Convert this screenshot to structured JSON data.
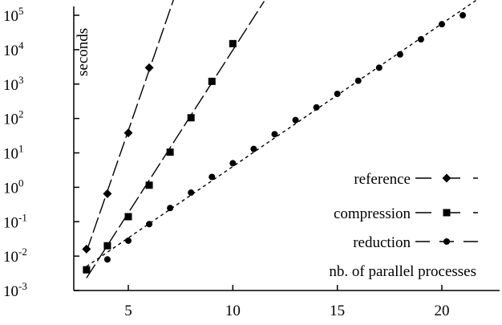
{
  "chart_data": {
    "type": "line",
    "title": "",
    "xlabel": "nb. of parallel processes",
    "ylabel": "seconds",
    "y_scale": "log",
    "xlim": [
      2.5,
      21.5
    ],
    "ylim": [
      0.001,
      200000
    ],
    "x_ticks": [
      5,
      10,
      15,
      20
    ],
    "y_ticks": [
      {
        "value": 0.001,
        "base": "10",
        "exp": "-3"
      },
      {
        "value": 0.01,
        "base": "10",
        "exp": "-2"
      },
      {
        "value": 0.1,
        "base": "10",
        "exp": "-1"
      },
      {
        "value": 1,
        "base": "10",
        "exp": "0"
      },
      {
        "value": 10,
        "base": "10",
        "exp": "1"
      },
      {
        "value": 100,
        "base": "10",
        "exp": "2"
      },
      {
        "value": 1000,
        "base": "10",
        "exp": "3"
      },
      {
        "value": 10000,
        "base": "10",
        "exp": "4"
      },
      {
        "value": 100000,
        "base": "10",
        "exp": "5"
      }
    ],
    "grid": false,
    "legend_position": "bottom-right",
    "series": [
      {
        "name": "reference",
        "marker": "diamond",
        "line_style": "long-dash",
        "x": [
          3,
          4,
          5,
          6
        ],
        "y": [
          0.016,
          0.65,
          38,
          3000
        ]
      },
      {
        "name": "compression",
        "marker": "square",
        "line_style": "long-dash",
        "x": [
          3,
          4,
          5,
          6,
          7,
          8,
          9,
          10
        ],
        "y": [
          0.004,
          0.02,
          0.14,
          1.15,
          10.5,
          105,
          1200,
          15000
        ]
      },
      {
        "name": "reduction",
        "marker": "circle",
        "line_style": "short-dash",
        "x": [
          3,
          4,
          5,
          6,
          7,
          8,
          9,
          10,
          11,
          12,
          13,
          14,
          15,
          16,
          17,
          18,
          19,
          20,
          21
        ],
        "y": [
          0.004,
          0.008,
          0.028,
          0.085,
          0.25,
          0.7,
          2,
          5,
          13,
          35,
          90,
          210,
          520,
          1250,
          3000,
          7300,
          20000,
          55000,
          100000
        ]
      }
    ]
  }
}
